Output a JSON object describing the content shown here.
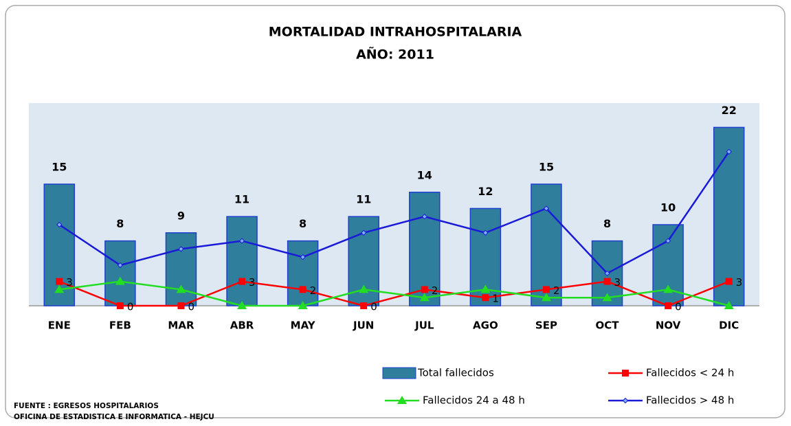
{
  "chart_data": {
    "type": "bar",
    "title": "MORTALIDAD INTRAHOSPITALARIA",
    "subtitle": "AÑO: 2011",
    "categories": [
      "ENE",
      "FEB",
      "MAR",
      "ABR",
      "MAY",
      "JUN",
      "JUL",
      "AGO",
      "SEP",
      "OCT",
      "NOV",
      "DIC"
    ],
    "ylim": [
      0,
      25
    ],
    "series": [
      {
        "name": "Total fallecidos",
        "type": "bar",
        "color": "#2f7f9c",
        "data_labels": true,
        "values": [
          15,
          8,
          9,
          11,
          8,
          11,
          14,
          12,
          15,
          8,
          10,
          22
        ]
      },
      {
        "name": "Fallecidos < 24 h",
        "type": "line",
        "marker": "square",
        "color": "#ff0000",
        "data_labels": true,
        "values": [
          3,
          0,
          0,
          3,
          2,
          0,
          2,
          1,
          2,
          3,
          0,
          3
        ]
      },
      {
        "name": "Fallecidos 24 a 48 h",
        "type": "line",
        "marker": "triangle",
        "color": "#22dd22",
        "data_labels": false,
        "values": [
          2,
          3,
          2,
          0,
          0,
          2,
          1,
          2,
          1,
          1,
          2,
          0
        ]
      },
      {
        "name": "Fallecidos > 48 h",
        "type": "line",
        "marker": "diamond",
        "color": "#1a1ad8",
        "data_labels": false,
        "values": [
          10,
          5,
          7,
          8,
          6,
          9,
          11,
          9,
          12,
          4,
          8,
          19
        ]
      }
    ],
    "footnotes": [
      "FUENTE : EGRESOS  HOSPITALARIOS",
      "OFICINA  DE  ESTADISTICA   E INFORMATICA   - HEJCU"
    ]
  }
}
